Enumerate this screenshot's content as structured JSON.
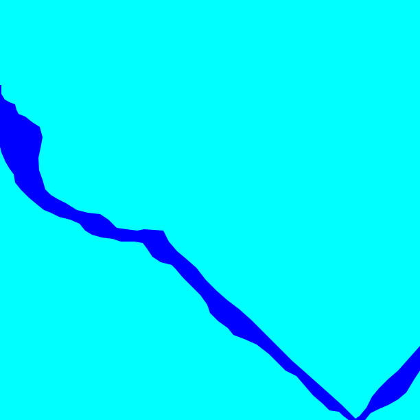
{
  "map": {
    "background_color": "#00FFFF",
    "features": [
      {
        "kind": "river",
        "color": "#0000FF"
      }
    ]
  }
}
